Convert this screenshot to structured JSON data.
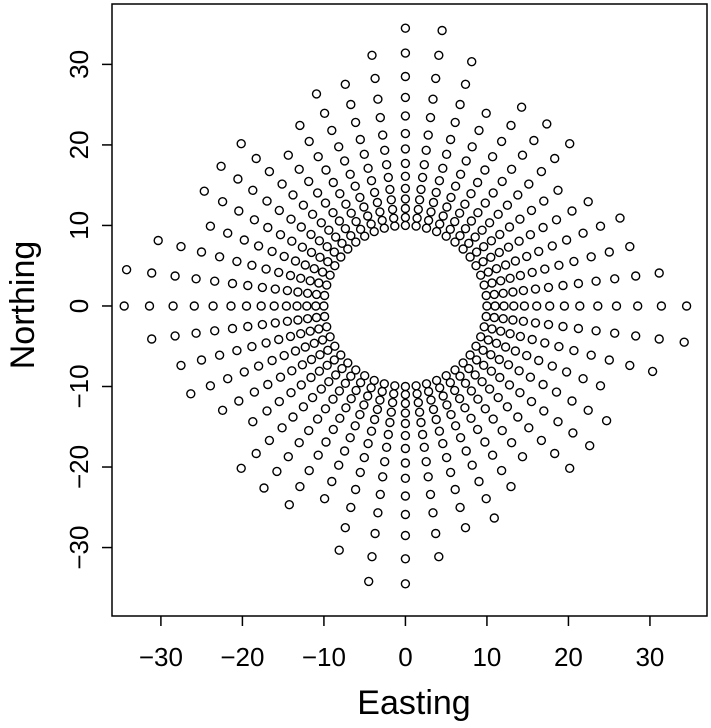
{
  "chart_data": {
    "type": "scatter",
    "title": "",
    "xlabel": "Easting",
    "ylabel": "Northing",
    "xlim": [
      -36,
      37
    ],
    "ylim": [
      -38.5,
      37.5
    ],
    "x_ticks": [
      -30,
      -20,
      -10,
      0,
      10,
      20,
      30
    ],
    "x_tick_labels": [
      "−30",
      "−20",
      "−10",
      "0",
      "10",
      "20",
      "30"
    ],
    "y_ticks": [
      -30,
      -20,
      -10,
      0,
      10,
      20,
      30
    ],
    "y_tick_labels": [
      "−30",
      "−20",
      "−10",
      "0",
      "10",
      "20",
      "30"
    ],
    "grid": false,
    "legend": "none",
    "marker": "open-circle",
    "colors": {
      "points": "#000000",
      "frame": "#000000",
      "background": "#ffffff"
    },
    "pattern": {
      "rays": 48,
      "radii": [
        10,
        11,
        12.1,
        13.3,
        14.6,
        16.1,
        17.7,
        19.5,
        21.4,
        23.6,
        25.9,
        28.5,
        31.4,
        34.5
      ],
      "ray_limits": {
        "0": 13,
        "1": 12,
        "2": 11,
        "3": 11,
        "4": 10,
        "5": 9,
        "6": 11,
        "7": 11,
        "8": 11,
        "9": 10,
        "10": 12,
        "11": 13,
        "12": 13,
        "13": 12,
        "14": 11,
        "15": 11,
        "16": 10,
        "17": 9,
        "18": 11,
        "19": 11,
        "20": 11,
        "21": 10,
        "22": 12,
        "23": 13,
        "24": 13,
        "25": 12,
        "26": 11,
        "27": 11,
        "28": 10,
        "29": 9,
        "30": 11,
        "31": 11,
        "32": 11,
        "33": 10,
        "34": 12,
        "35": 13,
        "36": 13,
        "37": 12,
        "38": 11,
        "39": 11,
        "40": 10,
        "41": 9,
        "42": 11,
        "43": 11,
        "44": 11,
        "45": 10,
        "46": 12,
        "47": 13
      }
    }
  }
}
